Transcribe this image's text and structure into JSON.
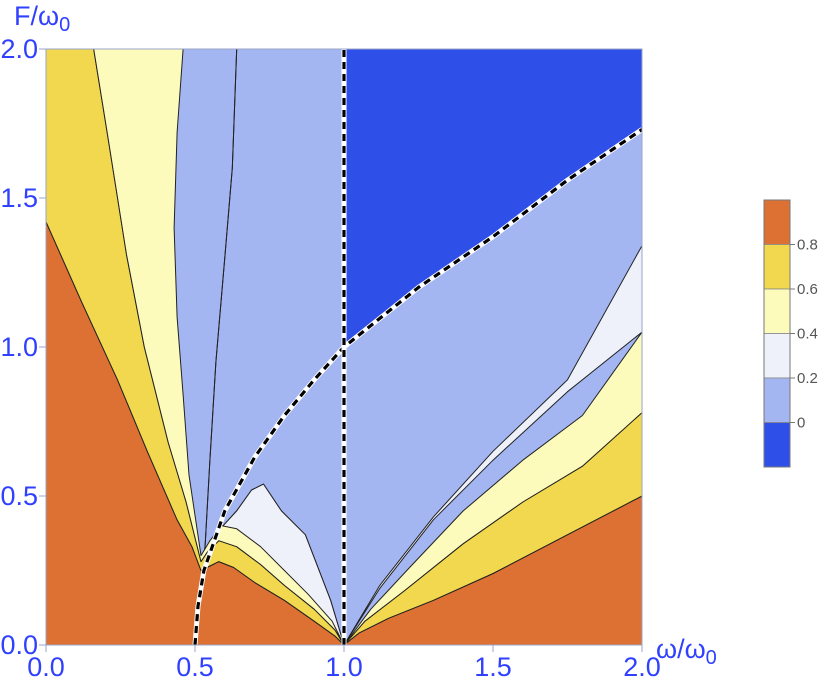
{
  "chart_data": {
    "type": "contour",
    "xlabel": "ω/ω",
    "xlabel_sub": "0",
    "ylabel": "F/ω",
    "ylabel_sub": "0",
    "xlim": [
      0.0,
      2.0
    ],
    "ylim": [
      0.0,
      2.0
    ],
    "x_ticks": [
      0.0,
      0.5,
      1.0,
      1.5,
      2.0
    ],
    "x_tick_labels": [
      "0.0",
      "0.5",
      "1.0",
      "1.5",
      "2.0"
    ],
    "y_ticks": [
      0.0,
      0.5,
      1.0,
      1.5,
      2.0
    ],
    "y_tick_labels": [
      "0.0",
      "0.5",
      "1.0",
      "1.5",
      "2.0"
    ],
    "contour_levels": [
      0,
      0.2,
      0.4,
      0.6,
      0.8
    ],
    "legend_labels": [
      "0.8",
      "0.6",
      "0.4",
      "0.2",
      "0"
    ],
    "legend_position": "right",
    "level_colors": [
      "#2f50e8",
      "#a4b6f2",
      "#eef0fa",
      "#fdfbbc",
      "#f2d84e",
      "#dc7133"
    ],
    "line_color": "#222222",
    "boundary_curves": [
      {
        "style": "dashed",
        "points": [
          [
            0.5,
            0.0
          ],
          [
            0.51,
            0.13
          ],
          [
            0.53,
            0.25
          ],
          [
            0.6,
            0.45
          ],
          [
            0.7,
            0.63
          ],
          [
            0.8,
            0.77
          ],
          [
            0.9,
            0.89
          ],
          [
            1.0,
            1.0
          ],
          [
            1.25,
            1.2
          ],
          [
            1.5,
            1.37
          ],
          [
            1.75,
            1.56
          ],
          [
            2.0,
            1.73
          ]
        ]
      },
      {
        "style": "dashed",
        "points": [
          [
            1.0,
            0.0
          ],
          [
            1.0,
            2.0
          ]
        ]
      }
    ]
  },
  "regions": [
    {
      "fill": "#a4b6f2",
      "points": [
        [
          0.43,
          2
        ],
        [
          2,
          2
        ],
        [
          2,
          0
        ],
        [
          1,
          0
        ],
        [
          0.955,
          0.15
        ],
        [
          0.87,
          0.37
        ],
        [
          0.79,
          0.45
        ],
        [
          0.73,
          0.54
        ],
        [
          0.69,
          0.52
        ],
        [
          0.64,
          0.45
        ],
        [
          0.585,
          0.39
        ],
        [
          0.55,
          0.33
        ],
        [
          0.53,
          0.28
        ],
        [
          0.535,
          0.35
        ],
        [
          0.55,
          0.62
        ],
        [
          0.57,
          0.95
        ],
        [
          0.6,
          1.3
        ],
        [
          0.625,
          1.6
        ],
        [
          0.64,
          2
        ]
      ]
    },
    {
      "fill": "#2f50e8",
      "points": [
        [
          1,
          2
        ],
        [
          2,
          2
        ],
        [
          2,
          1.73
        ],
        [
          1.75,
          1.56
        ],
        [
          1.5,
          1.37
        ],
        [
          1.25,
          1.2
        ],
        [
          1,
          1
        ]
      ]
    },
    {
      "fill": "#eef0fa",
      "points": [
        [
          0.32,
          2
        ],
        [
          0.43,
          2
        ],
        [
          0.64,
          2
        ],
        [
          0.625,
          1.6
        ],
        [
          0.6,
          1.3
        ],
        [
          0.57,
          0.95
        ],
        [
          0.55,
          0.62
        ],
        [
          0.535,
          0.35
        ],
        [
          0.53,
          0.28
        ],
        [
          0.55,
          0.33
        ],
        [
          0.585,
          0.39
        ],
        [
          0.64,
          0.45
        ],
        [
          0.69,
          0.52
        ],
        [
          0.73,
          0.54
        ],
        [
          0.79,
          0.45
        ],
        [
          0.87,
          0.37
        ],
        [
          0.955,
          0.15
        ],
        [
          1,
          0
        ],
        [
          0.53,
          0.25
        ],
        [
          0.535,
          0.35
        ],
        [
          0.55,
          0.62
        ],
        [
          0.57,
          0.95
        ],
        [
          0.6,
          1.3
        ],
        [
          0.625,
          1.6
        ],
        [
          0.64,
          2
        ]
      ]
    },
    {
      "fill": "#eef0fa",
      "points": [
        [
          1,
          0
        ],
        [
          1.12,
          0.2
        ],
        [
          1.3,
          0.43
        ],
        [
          1.5,
          0.65
        ],
        [
          1.75,
          0.89
        ],
        [
          2,
          1.34
        ],
        [
          2,
          1.05
        ],
        [
          1.75,
          0.85
        ],
        [
          1.5,
          0.62
        ],
        [
          1.3,
          0.42
        ],
        [
          1.12,
          0.19
        ]
      ]
    }
  ],
  "bands": [
    {
      "fill": "#dc7133",
      "points": [
        [
          0,
          0
        ],
        [
          0,
          1.42
        ],
        [
          0.12,
          1.15
        ],
        [
          0.24,
          0.89
        ],
        [
          0.34,
          0.65
        ],
        [
          0.44,
          0.42
        ],
        [
          0.49,
          0.33
        ],
        [
          0.52,
          0.25
        ],
        [
          0.54,
          0.26
        ],
        [
          0.58,
          0.28
        ],
        [
          0.63,
          0.26
        ],
        [
          0.7,
          0.21
        ],
        [
          0.8,
          0.15
        ],
        [
          0.9,
          0.08
        ],
        [
          0.97,
          0.03
        ],
        [
          1,
          0
        ],
        [
          1.05,
          0.04
        ],
        [
          1.15,
          0.09
        ],
        [
          1.3,
          0.15
        ],
        [
          1.5,
          0.24
        ],
        [
          1.75,
          0.37
        ],
        [
          2,
          0.5
        ],
        [
          2,
          0
        ]
      ]
    },
    {
      "fill": "#f2d84e",
      "points": [
        [
          0,
          1.42
        ],
        [
          0,
          2
        ],
        [
          0.16,
          2
        ],
        [
          0.21,
          1.69
        ],
        [
          0.27,
          1.31
        ],
        [
          0.33,
          1.0
        ],
        [
          0.41,
          0.68
        ],
        [
          0.47,
          0.48
        ],
        [
          0.52,
          0.28
        ],
        [
          0.54,
          0.31
        ],
        [
          0.58,
          0.35
        ],
        [
          0.64,
          0.33
        ],
        [
          0.72,
          0.27
        ],
        [
          0.8,
          0.2
        ],
        [
          0.9,
          0.12
        ],
        [
          0.97,
          0.05
        ],
        [
          1,
          0
        ],
        [
          1.07,
          0.08
        ],
        [
          1.2,
          0.18
        ],
        [
          1.4,
          0.34
        ],
        [
          1.6,
          0.48
        ],
        [
          1.8,
          0.6
        ],
        [
          2,
          0.78
        ],
        [
          2,
          0.5
        ],
        [
          1.75,
          0.37
        ],
        [
          1.5,
          0.24
        ],
        [
          1.3,
          0.15
        ],
        [
          1.15,
          0.09
        ],
        [
          1.05,
          0.04
        ],
        [
          1,
          0
        ],
        [
          0.97,
          0.03
        ],
        [
          0.9,
          0.08
        ],
        [
          0.8,
          0.15
        ],
        [
          0.7,
          0.21
        ],
        [
          0.63,
          0.26
        ],
        [
          0.58,
          0.28
        ],
        [
          0.54,
          0.26
        ],
        [
          0.52,
          0.25
        ],
        [
          0.49,
          0.33
        ],
        [
          0.44,
          0.42
        ],
        [
          0.34,
          0.65
        ],
        [
          0.24,
          0.89
        ],
        [
          0.12,
          1.15
        ]
      ]
    },
    {
      "fill": "#fdfbbc",
      "points": [
        [
          0.16,
          2
        ],
        [
          0.46,
          2
        ],
        [
          0.44,
          1.72
        ],
        [
          0.43,
          1.4
        ],
        [
          0.44,
          1.1
        ],
        [
          0.46,
          0.84
        ],
        [
          0.48,
          0.57
        ],
        [
          0.52,
          0.3
        ],
        [
          0.55,
          0.35
        ],
        [
          0.59,
          0.4
        ],
        [
          0.64,
          0.39
        ],
        [
          0.72,
          0.33
        ],
        [
          0.8,
          0.25
        ],
        [
          0.88,
          0.17
        ],
        [
          0.96,
          0.08
        ],
        [
          1,
          0
        ],
        [
          1.09,
          0.12
        ],
        [
          1.22,
          0.26
        ],
        [
          1.4,
          0.45
        ],
        [
          1.6,
          0.62
        ],
        [
          1.8,
          0.77
        ],
        [
          2,
          1.05
        ],
        [
          2,
          0.78
        ],
        [
          1.8,
          0.6
        ],
        [
          1.6,
          0.48
        ],
        [
          1.4,
          0.34
        ],
        [
          1.2,
          0.18
        ],
        [
          1.07,
          0.08
        ],
        [
          1,
          0
        ],
        [
          0.97,
          0.05
        ],
        [
          0.9,
          0.12
        ],
        [
          0.8,
          0.2
        ],
        [
          0.72,
          0.27
        ],
        [
          0.64,
          0.33
        ],
        [
          0.58,
          0.35
        ],
        [
          0.54,
          0.31
        ],
        [
          0.52,
          0.28
        ],
        [
          0.47,
          0.48
        ],
        [
          0.41,
          0.68
        ],
        [
          0.33,
          1.0
        ],
        [
          0.27,
          1.31
        ],
        [
          0.21,
          1.69
        ]
      ]
    }
  ]
}
